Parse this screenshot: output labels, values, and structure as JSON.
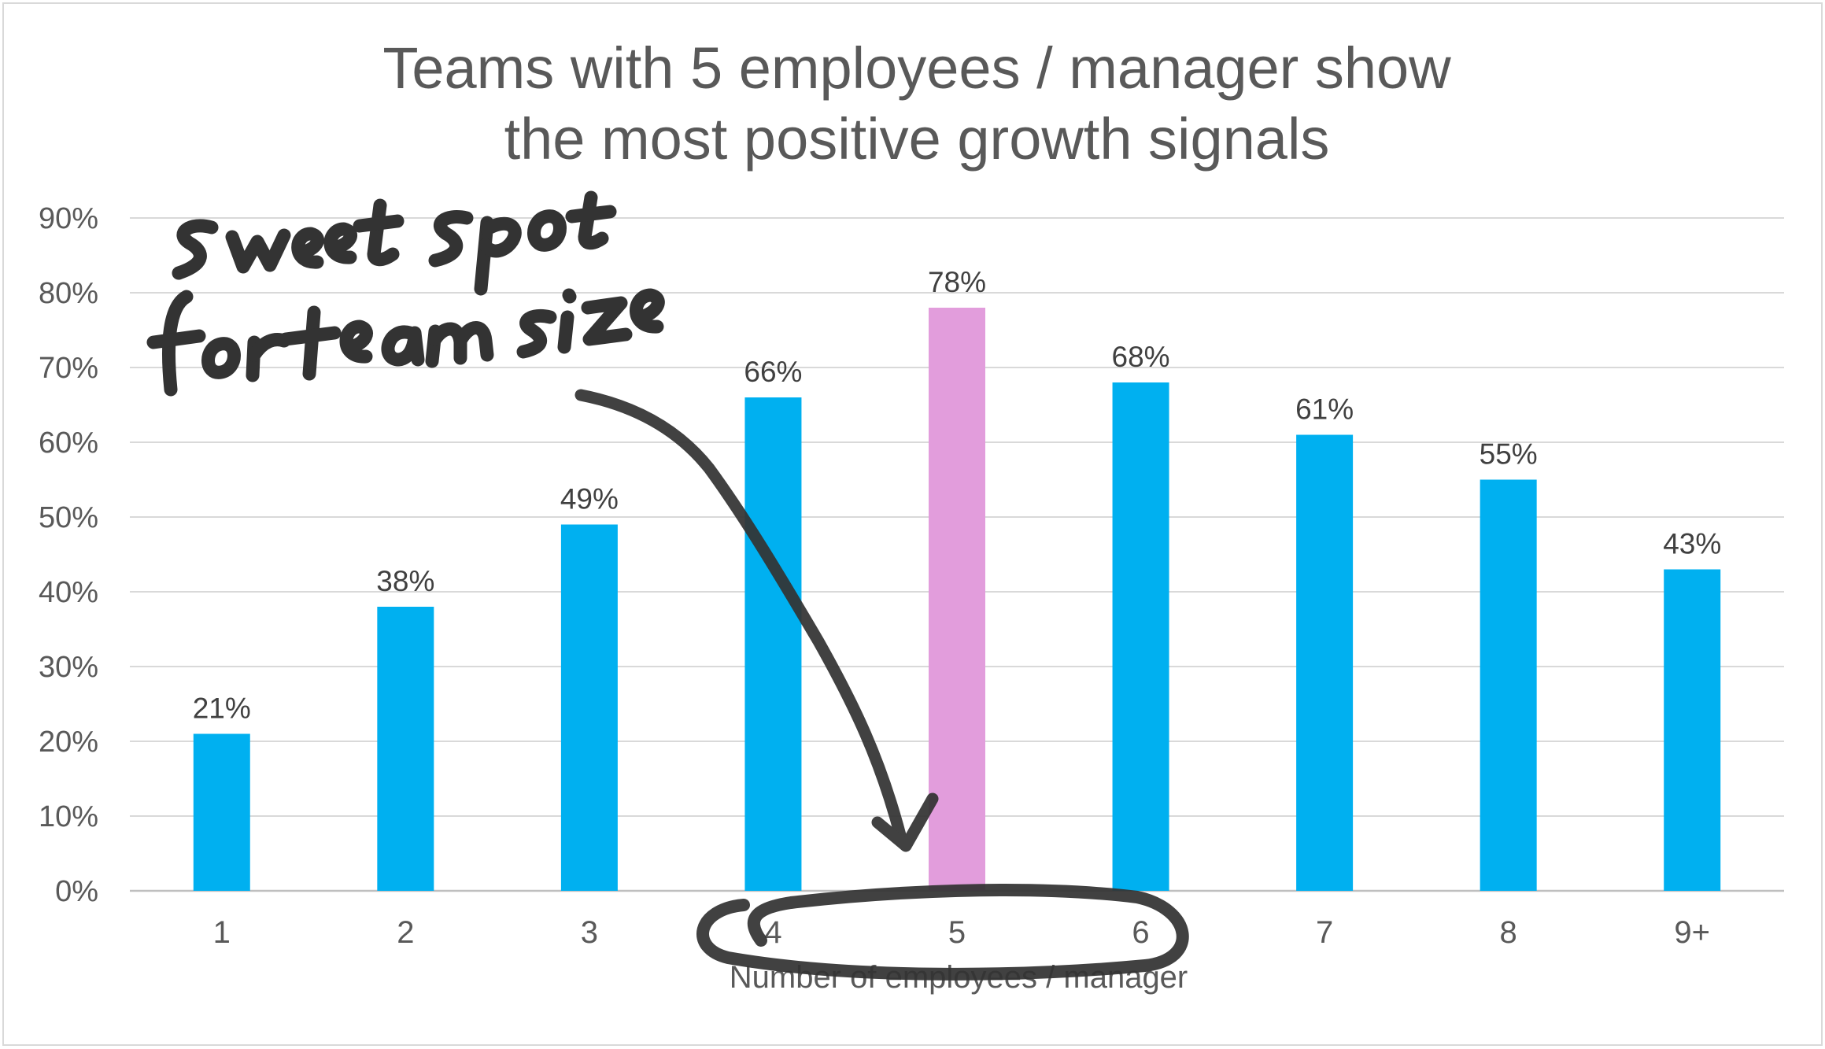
{
  "chart_data": {
    "type": "bar",
    "title": "Teams with 5 employees / manager show the most positive growth signals",
    "title_lines": [
      "Teams with 5 employees / manager show",
      "the most positive growth signals"
    ],
    "xlabel": "Number of employees / manager",
    "ylabel": "",
    "categories": [
      "1",
      "2",
      "3",
      "4",
      "5",
      "6",
      "7",
      "8",
      "9+"
    ],
    "values": [
      21,
      38,
      49,
      66,
      78,
      68,
      61,
      55,
      43
    ],
    "data_labels": [
      "21%",
      "38%",
      "49%",
      "66%",
      "78%",
      "68%",
      "61%",
      "55%",
      "43%"
    ],
    "yticks": [
      "0%",
      "10%",
      "20%",
      "30%",
      "40%",
      "50%",
      "60%",
      "70%",
      "80%",
      "90%"
    ],
    "ylim": [
      0,
      90
    ],
    "grid": true,
    "bar_color": "#00b0f0",
    "highlight_category": "5",
    "highlight_color": "#e29ddc",
    "annotation": {
      "text_lines": [
        "sweet spot",
        "for team size"
      ],
      "arrow_target": "5",
      "circled_categories": [
        "4",
        "5",
        "6"
      ]
    }
  }
}
